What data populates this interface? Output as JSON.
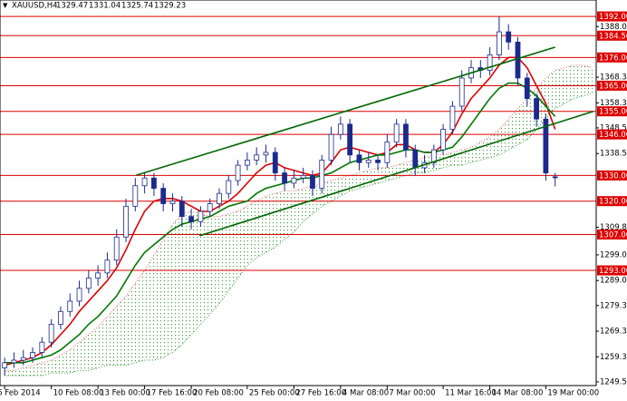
{
  "chart_data": {
    "type": "candlestick",
    "title": "XAUUSD,H4",
    "categories": [
      "6 Feb 2014",
      null,
      null,
      null,
      null,
      "10 Feb 08:00",
      null,
      null,
      null,
      null,
      "13 Feb 00:00",
      null,
      null,
      null,
      null,
      "17 Feb 16:00",
      null,
      null,
      null,
      null,
      "20 Feb 08:00",
      null,
      null,
      null,
      null,
      null,
      "25 Feb 00:00",
      null,
      null,
      null,
      null,
      "27 Feb 16:00",
      null,
      null,
      null,
      null,
      "4 Mar 08:00",
      null,
      null,
      null,
      null,
      "7 Mar 00:00",
      null,
      null,
      null,
      null,
      null,
      "11 Mar 16:00",
      null,
      null,
      null,
      null,
      "14 Mar 08:00",
      null,
      null,
      null,
      null,
      null,
      "19 Mar 00:00",
      null
    ],
    "open": [
      1255,
      1257,
      1258,
      1259,
      1261,
      1265,
      1272,
      1277,
      1281,
      1286,
      1290,
      1292,
      1297,
      1306,
      1318,
      1326,
      1329,
      1325,
      1319,
      1320,
      1314,
      1312,
      1316,
      1319,
      1323,
      1328,
      1334,
      1336,
      1338,
      1339,
      1331,
      1327,
      1329,
      1330,
      1325,
      1336,
      1346,
      1350,
      1338,
      1335,
      1336,
      1335,
      1343,
      1350,
      1340,
      1333,
      1335,
      1340,
      1348,
      1357,
      1368,
      1372,
      1371,
      1377,
      1386,
      1382,
      1368,
      1360,
      1352,
      1329.47
    ],
    "high": [
      1259,
      1261,
      1262,
      1263,
      1267,
      1274,
      1279,
      1284,
      1289,
      1293,
      1295,
      1300,
      1309,
      1321,
      1329,
      1331,
      1331,
      1327,
      1323,
      1322,
      1317,
      1318,
      1321,
      1325,
      1330,
      1336,
      1339,
      1341,
      1342,
      1341,
      1333,
      1332,
      1333,
      1332,
      1338,
      1349,
      1353,
      1352,
      1340,
      1339,
      1338,
      1346,
      1352,
      1352,
      1342,
      1338,
      1342,
      1350,
      1359,
      1371,
      1375,
      1375,
      1380,
      1392,
      1389,
      1384,
      1370,
      1362,
      1354,
      1331.04
    ],
    "low": [
      1252,
      1255,
      1256,
      1257,
      1259,
      1263,
      1270,
      1275,
      1279,
      1284,
      1287,
      1290,
      1295,
      1304,
      1316,
      1323,
      1322,
      1316,
      1316,
      1310,
      1309,
      1310,
      1314,
      1317,
      1321,
      1326,
      1332,
      1334,
      1335,
      1328,
      1324,
      1325,
      1327,
      1322,
      1323,
      1334,
      1344,
      1335,
      1332,
      1333,
      1332,
      1333,
      1341,
      1337,
      1330,
      1331,
      1333,
      1338,
      1346,
      1355,
      1366,
      1368,
      1369,
      1375,
      1379,
      1365,
      1357,
      1349,
      1328,
      1325.74
    ],
    "close": [
      1257,
      1258,
      1259,
      1261,
      1265,
      1272,
      1277,
      1281,
      1286,
      1290,
      1292,
      1297,
      1306,
      1318,
      1326,
      1329,
      1325,
      1319,
      1320,
      1314,
      1312,
      1316,
      1319,
      1323,
      1328,
      1334,
      1336,
      1338,
      1339,
      1331,
      1327,
      1329,
      1330,
      1325,
      1336,
      1346,
      1350,
      1338,
      1335,
      1336,
      1335,
      1343,
      1350,
      1340,
      1333,
      1335,
      1340,
      1348,
      1357,
      1368,
      1372,
      1371,
      1377,
      1386,
      1382,
      1368,
      1360,
      1352,
      1331,
      1329.23
    ],
    "up_color": "#ffffff",
    "down_color": "#1c2a8c",
    "wick_color": "#1c2a8c",
    "lines": [
      {
        "color": "#dd0000",
        "values": [
          1256,
          1257,
          1258,
          1259,
          1261,
          1264,
          1268,
          1272,
          1277,
          1281,
          1285,
          1289,
          1294,
          1301,
          1309,
          1316,
          1320,
          1321,
          1321,
          1320,
          1318,
          1316,
          1316,
          1318,
          1320,
          1323,
          1327,
          1331,
          1334,
          1335,
          1333,
          1332,
          1331,
          1330,
          1331,
          1335,
          1340,
          1341,
          1340,
          1339,
          1338,
          1339,
          1342,
          1342,
          1340,
          1339,
          1339,
          1342,
          1347,
          1354,
          1360,
          1364,
          1368,
          1373,
          1376,
          1376,
          1372,
          1365,
          1358,
          1348
        ]
      },
      {
        "color": "#007700",
        "values": [
          1257,
          1257,
          1257,
          1258,
          1259,
          1260,
          1262,
          1265,
          1268,
          1272,
          1275,
          1279,
          1283,
          1289,
          1295,
          1300,
          1303,
          1306,
          1309,
          1311,
          1312,
          1313,
          1314,
          1316,
          1318,
          1319,
          1320,
          1323,
          1325,
          1326,
          1327,
          1328,
          1329,
          1329,
          1330,
          1331,
          1333,
          1335,
          1336,
          1337,
          1338,
          1338,
          1339,
          1340,
          1340,
          1339,
          1339,
          1340,
          1341,
          1345,
          1350,
          1355,
          1360,
          1364,
          1366,
          1366,
          1364,
          1361,
          1357,
          1353
        ]
      }
    ],
    "cloud": {
      "span_a": [
        1254,
        1254,
        1255,
        1256,
        1257,
        1258,
        1260,
        1262,
        1265,
        1268,
        1271,
        1275,
        1279,
        1283,
        1288,
        1293,
        1299,
        1305,
        1311,
        1315,
        1316,
        1315,
        1314,
        1314,
        1315,
        1316,
        1318,
        1320,
        1322,
        1323,
        1324,
        1324,
        1325,
        1326,
        1327,
        1328,
        1329,
        1330,
        1331,
        1332,
        1333,
        1333,
        1334,
        1335,
        1336,
        1337,
        1338,
        1338,
        1339,
        1340,
        1341,
        1343,
        1345,
        1348,
        1352,
        1356,
        1360,
        1364,
        1368,
        1371,
        1372,
        1373,
        1373,
        1372
      ],
      "span_b": [
        1252,
        1252,
        1252,
        1252,
        1252,
        1253,
        1253,
        1253,
        1254,
        1254,
        1255,
        1256,
        1256,
        1256,
        1257,
        1258,
        1258,
        1259,
        1261,
        1264,
        1268,
        1272,
        1276,
        1280,
        1285,
        1290,
        1295,
        1298,
        1300,
        1302,
        1305,
        1308,
        1312,
        1315,
        1318,
        1320,
        1322,
        1324,
        1325,
        1326,
        1327,
        1328,
        1329,
        1330,
        1331,
        1331,
        1332,
        1333,
        1334,
        1334,
        1335,
        1336,
        1337,
        1338,
        1340,
        1342,
        1344,
        1348,
        1352,
        1356,
        1358,
        1360,
        1361,
        1362
      ],
      "color_a": "#e06060",
      "color_b": "#2e9a2e"
    },
    "levels": [
      {
        "value": 1392,
        "label": "1392.00"
      },
      {
        "value": 1384.5,
        "label": "1384.50"
      },
      {
        "value": 1376,
        "label": "1376.00"
      },
      {
        "value": 1365,
        "label": "1365.00"
      },
      {
        "value": 1355,
        "label": "1355.00"
      },
      {
        "value": 1346,
        "label": "1346.00"
      },
      {
        "value": 1330,
        "label": "1330.00"
      },
      {
        "value": 1320,
        "label": "1320.00"
      },
      {
        "value": 1307,
        "label": "1307.00"
      },
      {
        "value": 1293,
        "label": "1293.00"
      }
    ],
    "level_color": "#dd0000",
    "trendlines": [
      {
        "x": [
          14.1,
          59
        ],
        "y": [
          1330.1,
          1380
        ]
      },
      {
        "x": [
          20.9,
          63.1
        ],
        "y": [
          1306.5,
          1355
        ]
      }
    ],
    "trendline_color": "#006600",
    "xlim": [
      -0.5,
      63.4
    ],
    "ylim": [
      1248.1,
      1398.4
    ],
    "yticks": [
      1249.55,
      {
        "value": 1259.3,
        "label": "1259.30"
      },
      {
        "value": 1269.3,
        "label": "1269.30"
      },
      {
        "value": 1279.3,
        "label": "1279.30"
      },
      1289.05,
      1299.05,
      {
        "value": 1309.8,
        "label": "1309.80"
      },
      1338.55,
      1348.55,
      {
        "value": 1358.3,
        "label": "1358.30"
      },
      {
        "value": 1368.3,
        "label": "1368.30"
      },
      1388.05
    ]
  }
}
